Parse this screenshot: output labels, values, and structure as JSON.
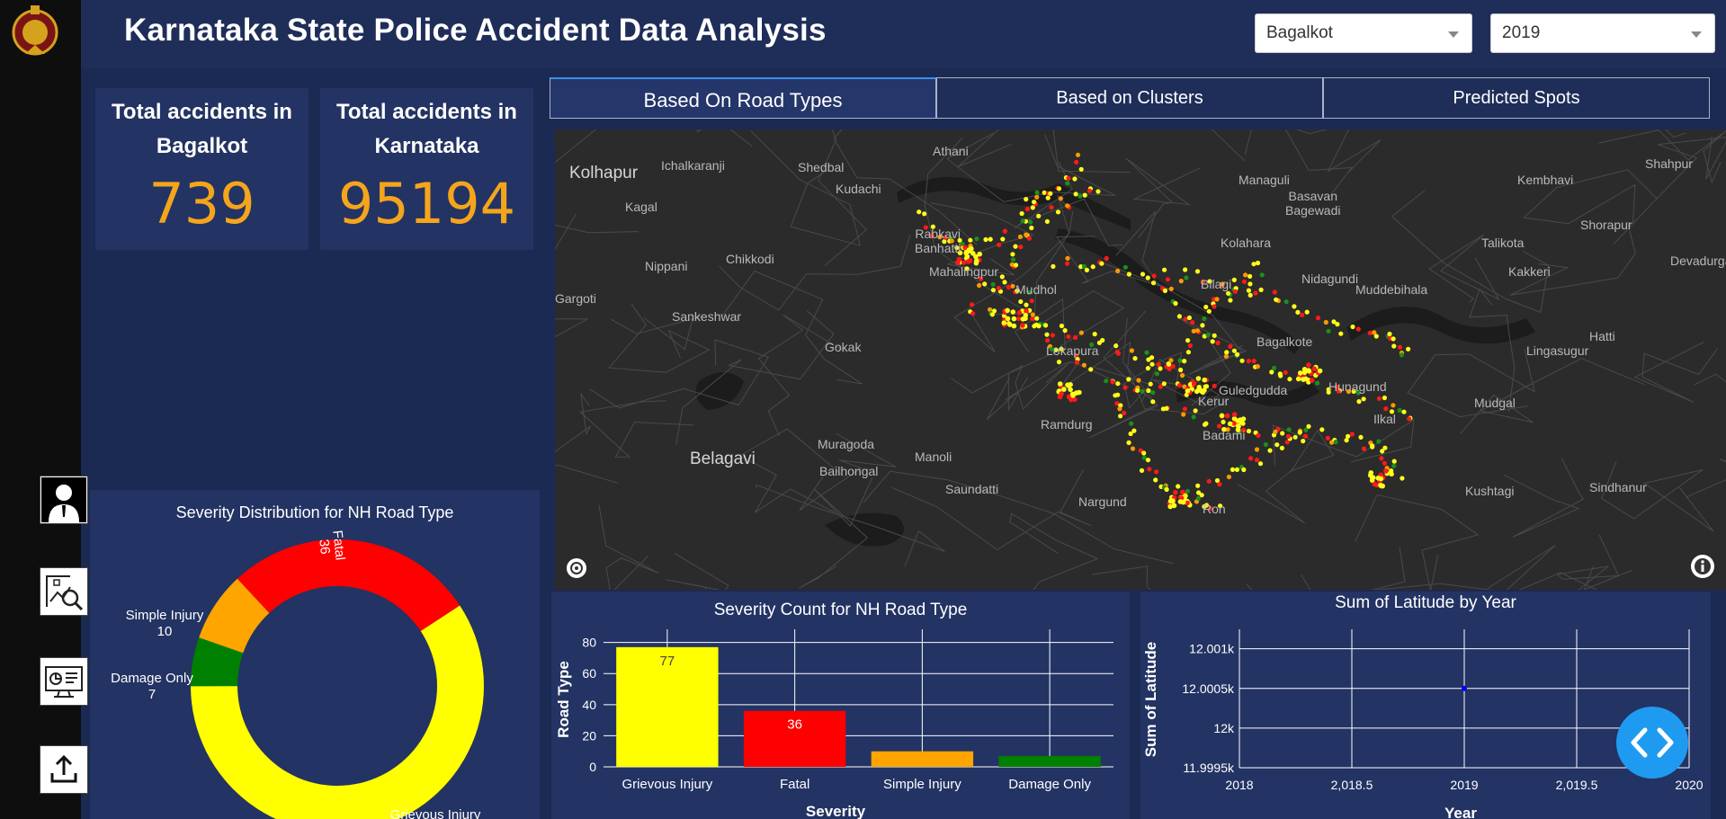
{
  "header": {
    "title": "Karnataka State Police Accident Data Analysis",
    "district_select": {
      "value": "Bagalkot"
    },
    "year_select": {
      "value": "2019"
    }
  },
  "stats": {
    "district_card": {
      "label_line1": "Total accidents in",
      "label_line2": "Bagalkot",
      "value": "739"
    },
    "state_card": {
      "label_line1": "Total accidents in",
      "label_line2": "Karnataka",
      "value": "95194"
    }
  },
  "tabs": [
    {
      "label": "Based On Road Types",
      "active": true
    },
    {
      "label": "Based on Clusters",
      "active": false
    },
    {
      "label": "Predicted Spots",
      "active": false
    }
  ],
  "rail": {
    "items": [
      {
        "icon": "user-icon"
      },
      {
        "icon": "analysis-icon"
      },
      {
        "icon": "dashboard-icon"
      },
      {
        "icon": "upload-icon"
      }
    ]
  },
  "map": {
    "places": [
      "Athani",
      "Kolhapur",
      "Ichalkaranji",
      "Shedbal",
      "Kudachi",
      "Managuli",
      "Basavan Bagewadi",
      "Kembhavi",
      "Shahpur",
      "Kagal",
      "Shorapur",
      "Talikota",
      "Devadurga",
      "Kolahara",
      "Rabkavi Banhatti",
      "Nippani",
      "Chikkodi",
      "Mahalingpur",
      "Mudhol",
      "Bilagi",
      "Nidagundi",
      "Muddebihala",
      "Kakkeri",
      "Gargoti",
      "Sankeshwar",
      "Gokak",
      "Lokapura",
      "Bagalkote",
      "Hatti",
      "Lingasugur",
      "Guledgudda",
      "Hunagund",
      "Mudgal",
      "Kerur",
      "Ramdurg",
      "Ilkal",
      "Badami",
      "Muragoda",
      "Manoli",
      "Belagavi",
      "Bailhongal",
      "Saundatti",
      "Nargund",
      "Kushtagi",
      "Sindhanur",
      "Ron"
    ],
    "point_colors": {
      "fatal": "#ff1a1a",
      "grievous": "#ffff1a",
      "simple": "#ff9900",
      "damage": "#1b8f1b"
    }
  },
  "donut": {
    "title": "Severity Distribution for NH Road Type",
    "slices": [
      {
        "name": "Fatal",
        "value": 36,
        "color": "#ff0000"
      },
      {
        "name": "Grievous Injury",
        "value": 77,
        "color": "#ffff00"
      },
      {
        "name": "Damage Only",
        "value": 7,
        "color": "#008000"
      },
      {
        "name": "Simple Injury",
        "value": 10,
        "color": "#ffa500"
      }
    ],
    "labels": {
      "fatal_name": "Fatal",
      "fatal_value": "36",
      "simple_name": "Simple Injury",
      "simple_value": "10",
      "damage_name": "Damage Only",
      "damage_value": "7",
      "grievous_name": "Grievous Injury"
    }
  },
  "chart_data": [
    {
      "type": "bar",
      "title": "Severity Count for NH Road Type",
      "xlabel": "Severity",
      "ylabel": "Road Type",
      "categories": [
        "Grievous Injury",
        "Fatal",
        "Simple Injury",
        "Damage Only"
      ],
      "values": [
        77,
        36,
        10,
        7
      ],
      "data_labels": [
        "77",
        "36",
        "",
        ""
      ],
      "colors": [
        "#ffff00",
        "#ff0000",
        "#ffa500",
        "#008000"
      ],
      "ylim": [
        0,
        85
      ],
      "yticks": [
        0,
        20,
        40,
        60,
        80
      ],
      "grid": true
    },
    {
      "type": "scatter",
      "title": "Sum of Latitude by Year",
      "xlabel": "Year",
      "ylabel": "Sum of Latitude",
      "x": [
        2019
      ],
      "y": [
        12000.5
      ],
      "xlim": [
        2018,
        2020
      ],
      "xticks": [
        "2018",
        "2,018.5",
        "2019",
        "2,019.5",
        "2020"
      ],
      "ylim": [
        11999.5,
        12001.2
      ],
      "yticks": [
        "11.9995k",
        "12k",
        "12.0005k",
        "12.001k"
      ],
      "point_color": "#0000ff",
      "grid": true
    }
  ]
}
